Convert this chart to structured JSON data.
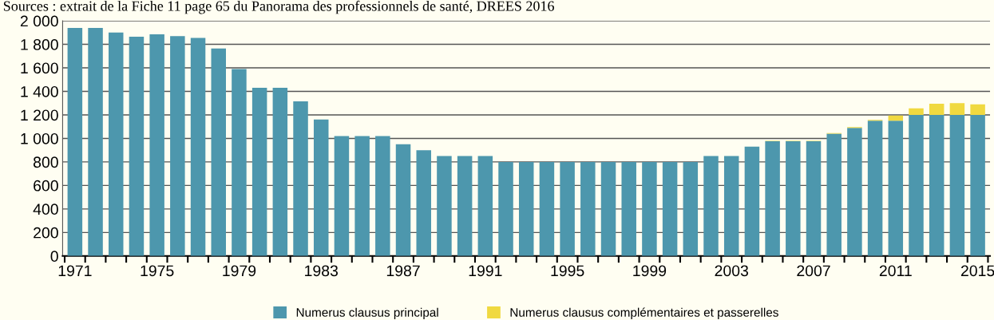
{
  "chart_data": {
    "type": "bar",
    "stacked": true,
    "categories": [
      "1971",
      null,
      null,
      null,
      "1975",
      null,
      null,
      null,
      "1979",
      null,
      null,
      null,
      "1983",
      null,
      null,
      null,
      "1987",
      null,
      null,
      null,
      "1991",
      null,
      null,
      null,
      "1995",
      null,
      null,
      null,
      "1999",
      null,
      null,
      null,
      "2003",
      null,
      null,
      null,
      "2007",
      null,
      null,
      null,
      "2011",
      null,
      null,
      null,
      "2015"
    ],
    "series": [
      {
        "name": "Numerus clausus principal",
        "color": "#4d97ad",
        "values": [
          1940,
          1940,
          1900,
          1865,
          1885,
          1870,
          1855,
          1765,
          1590,
          1430,
          1430,
          1315,
          1160,
          1020,
          1020,
          1020,
          950,
          900,
          850,
          850,
          850,
          800,
          800,
          800,
          800,
          800,
          800,
          800,
          800,
          800,
          800,
          850,
          850,
          930,
          975,
          975,
          975,
          1040,
          1090,
          1150,
          1150,
          1200,
          1200,
          1200,
          1200
        ]
      },
      {
        "name": "Numerus clausus complémentaires et passerelles",
        "color": "#f0d940",
        "values": [
          0,
          0,
          0,
          0,
          0,
          0,
          0,
          0,
          0,
          0,
          0,
          0,
          0,
          0,
          0,
          0,
          0,
          0,
          0,
          0,
          0,
          0,
          0,
          0,
          0,
          0,
          0,
          0,
          0,
          0,
          0,
          0,
          0,
          0,
          5,
          5,
          5,
          5,
          7,
          7,
          45,
          55,
          95,
          100,
          90
        ]
      }
    ],
    "ylim": [
      0,
      2000
    ],
    "yticks": [
      0,
      200,
      400,
      600,
      800,
      {
        "value": 1000,
        "label": "1 000"
      },
      {
        "value": 1200,
        "label": "1 200"
      },
      {
        "value": 1400,
        "label": "1 400"
      },
      {
        "value": 1600,
        "label": "1 600"
      },
      {
        "value": 1800,
        "label": "1 800"
      },
      {
        "value": 2000,
        "label": "2 000"
      }
    ],
    "grid": "y",
    "legend": "bottom",
    "annotations": [
      "Sources : extrait de la Fiche 11 page 65 du Panorama des professionnels de santé, DREES 2016"
    ]
  }
}
